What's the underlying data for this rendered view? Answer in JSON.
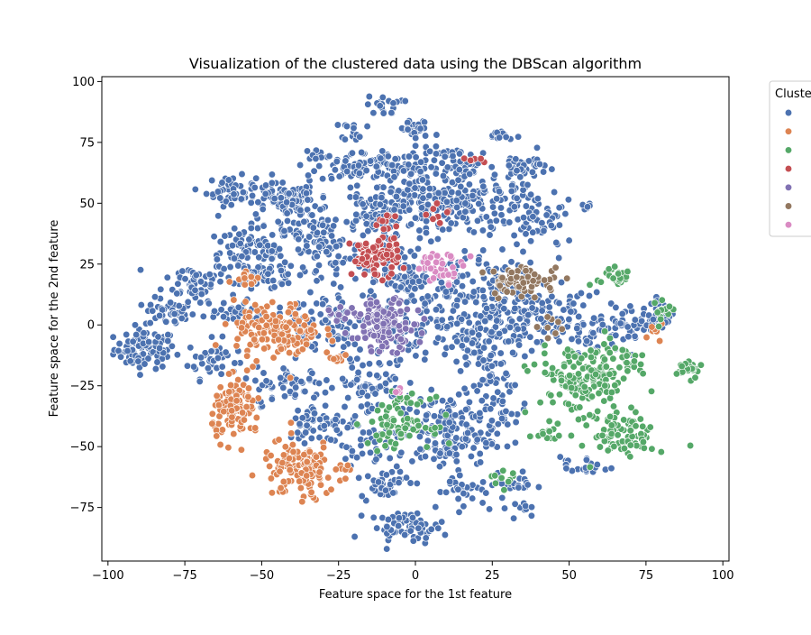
{
  "chart_data": {
    "type": "scatter",
    "title": "Visualization of the clustered data using the DBScan algorithm",
    "xlabel": "Feature space for the 1st feature",
    "ylabel": "Feature space for the 2nd feature",
    "xlim": [
      -102,
      102
    ],
    "ylim": [
      -97,
      102
    ],
    "xticks": [
      -100,
      -75,
      -50,
      -25,
      0,
      25,
      50,
      75,
      100
    ],
    "xtick_labels": [
      "−100",
      "−75",
      "−50",
      "−25",
      "0",
      "25",
      "50",
      "75",
      "100"
    ],
    "yticks": [
      -75,
      -50,
      -25,
      0,
      25,
      50,
      75,
      100
    ],
    "ytick_labels": [
      "−75",
      "−50",
      "−25",
      "0",
      "25",
      "50",
      "75",
      "100"
    ],
    "grid": false,
    "legend": {
      "title": "Cluster",
      "placement": "outside-right",
      "entries": [
        {
          "color": "#4c72b0"
        },
        {
          "color": "#dd8452"
        },
        {
          "color": "#55a868"
        },
        {
          "color": "#c44e52"
        },
        {
          "color": "#8172b3"
        },
        {
          "color": "#937860"
        },
        {
          "color": "#da8bc3"
        }
      ]
    },
    "series": [
      {
        "color": "#4c72b0",
        "blobs": [
          [
            -88,
            -10,
            5,
            4,
            90
          ],
          [
            -80,
            5,
            4,
            3,
            40
          ],
          [
            -72,
            18,
            5,
            4,
            50
          ],
          [
            -66,
            -14,
            4,
            4,
            40
          ],
          [
            -60,
            55,
            4,
            3,
            50
          ],
          [
            -55,
            30,
            6,
            5,
            80
          ],
          [
            -44,
            52,
            6,
            3,
            70
          ],
          [
            -48,
            20,
            5,
            3,
            50
          ],
          [
            -38,
            45,
            6,
            6,
            80
          ],
          [
            -32,
            70,
            2,
            1,
            10
          ],
          [
            -30,
            30,
            8,
            8,
            90
          ],
          [
            -20,
            65,
            6,
            3,
            60
          ],
          [
            -20,
            80,
            2,
            2,
            15
          ],
          [
            -15,
            45,
            5,
            5,
            60
          ],
          [
            -10,
            90,
            3,
            2,
            20
          ],
          [
            -5,
            65,
            6,
            4,
            70
          ],
          [
            0,
            80,
            3,
            2,
            25
          ],
          [
            0,
            50,
            10,
            6,
            120
          ],
          [
            15,
            65,
            6,
            4,
            60
          ],
          [
            20,
            50,
            10,
            5,
            120
          ],
          [
            28,
            78,
            2,
            1,
            15
          ],
          [
            35,
            65,
            4,
            3,
            40
          ],
          [
            40,
            40,
            6,
            5,
            50
          ],
          [
            55,
            48,
            1,
            1,
            8
          ],
          [
            35,
            5,
            8,
            8,
            120
          ],
          [
            15,
            10,
            10,
            10,
            150
          ],
          [
            -5,
            20,
            6,
            6,
            80
          ],
          [
            -30,
            0,
            8,
            8,
            80
          ],
          [
            -40,
            -25,
            6,
            4,
            60
          ],
          [
            -30,
            -40,
            6,
            4,
            60
          ],
          [
            -15,
            -25,
            6,
            6,
            60
          ],
          [
            -10,
            -65,
            4,
            3,
            40
          ],
          [
            -3,
            -83,
            6,
            3,
            60
          ],
          [
            10,
            -45,
            8,
            8,
            150
          ],
          [
            15,
            -68,
            4,
            3,
            30
          ],
          [
            25,
            -30,
            6,
            8,
            60
          ],
          [
            20,
            -10,
            6,
            6,
            60
          ],
          [
            33,
            -65,
            3,
            2,
            20
          ],
          [
            33,
            -75,
            2,
            2,
            10
          ],
          [
            55,
            -58,
            4,
            2,
            20
          ],
          [
            55,
            0,
            6,
            6,
            60
          ],
          [
            70,
            0,
            4,
            4,
            40
          ],
          [
            80,
            5,
            3,
            3,
            30
          ],
          [
            -60,
            5,
            5,
            3,
            30
          ],
          [
            -18,
            -50,
            4,
            4,
            30
          ],
          [
            -5,
            -5,
            5,
            5,
            50
          ]
        ]
      },
      {
        "color": "#dd8452",
        "blobs": [
          [
            -45,
            -3,
            7,
            6,
            150
          ],
          [
            -58,
            -35,
            4,
            6,
            100
          ],
          [
            -38,
            -60,
            6,
            6,
            120
          ],
          [
            -55,
            20,
            2,
            2,
            15
          ],
          [
            -25,
            -12,
            2,
            2,
            10
          ],
          [
            78,
            -2,
            2,
            2,
            8
          ],
          [
            -22,
            -60,
            2,
            2,
            6
          ]
        ]
      },
      {
        "color": "#55a868",
        "blobs": [
          [
            -5,
            -40,
            5,
            5,
            80
          ],
          [
            55,
            -22,
            8,
            7,
            160
          ],
          [
            68,
            -45,
            5,
            5,
            80
          ],
          [
            65,
            20,
            3,
            3,
            30
          ],
          [
            80,
            5,
            2,
            2,
            15
          ],
          [
            89,
            -18,
            2,
            2,
            25
          ],
          [
            43,
            -45,
            3,
            2,
            15
          ],
          [
            28,
            -63,
            2,
            2,
            10
          ],
          [
            70,
            -15,
            3,
            3,
            15
          ]
        ]
      },
      {
        "color": "#c44e52",
        "blobs": [
          [
            -13,
            28,
            4,
            4,
            80
          ],
          [
            -10,
            42,
            2,
            2,
            10
          ],
          [
            8,
            45,
            2,
            2,
            8
          ],
          [
            20,
            68,
            2,
            1,
            6
          ]
        ]
      },
      {
        "color": "#8172b3",
        "blobs": [
          [
            -10,
            0,
            5,
            5,
            120
          ],
          [
            -25,
            5,
            2,
            2,
            8
          ]
        ]
      },
      {
        "color": "#937860",
        "blobs": [
          [
            35,
            18,
            6,
            3,
            70
          ],
          [
            45,
            0,
            3,
            2,
            8
          ]
        ]
      },
      {
        "color": "#da8bc3",
        "blobs": [
          [
            8,
            24,
            4,
            3,
            35
          ],
          [
            -5,
            -28,
            1,
            1,
            4
          ]
        ]
      }
    ]
  }
}
